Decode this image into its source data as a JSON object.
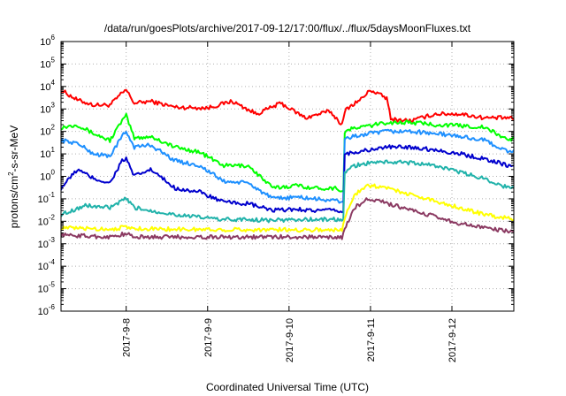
{
  "chart_data": {
    "type": "line",
    "title": "/data/run/goesPlots/archive/2017-09-12/17:00/flux/../flux/5daysMoonFluxes.txt",
    "xlabel": "Coordinated Universal Time (UTC)",
    "ylabel_main": "protons/cm",
    "ylabel_sup": "2",
    "ylabel_tail": "-s-sr-MeV",
    "y_scale": "log",
    "ylim": [
      1e-06,
      1000000.0
    ],
    "xlim": [
      7.2,
      12.76
    ],
    "grid": true,
    "legend": "none",
    "x_ticks": [
      {
        "value": 8,
        "label": "2017-9-8"
      },
      {
        "value": 9,
        "label": "2017-9-9"
      },
      {
        "value": 10,
        "label": "2017-9-10"
      },
      {
        "value": 11,
        "label": "2017-9-11"
      },
      {
        "value": 12,
        "label": "2017-9-12"
      }
    ],
    "y_ticks": [
      {
        "value": -6,
        "base": "10",
        "exp": "-6"
      },
      {
        "value": -5,
        "base": "10",
        "exp": "-5"
      },
      {
        "value": -4,
        "base": "10",
        "exp": "-4"
      },
      {
        "value": -3,
        "base": "10",
        "exp": "-3"
      },
      {
        "value": -2,
        "base": "10",
        "exp": "-2"
      },
      {
        "value": -1,
        "base": "10",
        "exp": "-1"
      },
      {
        "value": 0,
        "base": "10",
        "exp": "0"
      },
      {
        "value": 1,
        "base": "10",
        "exp": "1"
      },
      {
        "value": 2,
        "base": "10",
        "exp": "2"
      },
      {
        "value": 3,
        "base": "10",
        "exp": "3"
      },
      {
        "value": 4,
        "base": "10",
        "exp": "4"
      },
      {
        "value": 5,
        "base": "10",
        "exp": "5"
      },
      {
        "value": 6,
        "base": "10",
        "exp": "6"
      }
    ],
    "series": [
      {
        "color": "#ff0000",
        "x": [
          7.2,
          7.4,
          7.6,
          7.8,
          7.95,
          8.0,
          8.1,
          8.3,
          8.6,
          9.0,
          9.3,
          9.6,
          9.9,
          10.2,
          10.5,
          10.65,
          10.7,
          10.9,
          11.0,
          11.2,
          11.25,
          11.5,
          11.8,
          12.1,
          12.4,
          12.7,
          12.76
        ],
        "y": [
          7000,
          2500,
          1500,
          1500,
          5000,
          7000,
          1800,
          2200,
          1200,
          1100,
          2200,
          600,
          1800,
          400,
          800,
          200,
          1000,
          3000,
          7000,
          3000,
          350,
          300,
          600,
          600,
          400,
          400,
          350
        ]
      },
      {
        "color": "#00ff00",
        "x": [
          7.2,
          7.4,
          7.6,
          7.8,
          7.95,
          8.0,
          8.1,
          8.3,
          8.6,
          8.9,
          9.2,
          9.5,
          9.8,
          10.1,
          10.3,
          10.6,
          10.65,
          10.7,
          10.8,
          11.0,
          11.2,
          11.5,
          11.8,
          12.1,
          12.4,
          12.7,
          12.76
        ],
        "y": [
          150,
          200,
          80,
          40,
          300,
          500,
          50,
          60,
          20,
          12,
          3,
          3,
          0.3,
          0.4,
          0.3,
          0.3,
          0.2,
          100,
          140,
          180,
          250,
          250,
          200,
          180,
          150,
          40,
          50
        ]
      },
      {
        "color": "#1e90ff",
        "x": [
          7.2,
          7.4,
          7.6,
          7.8,
          7.95,
          8.0,
          8.1,
          8.3,
          8.6,
          8.9,
          9.2,
          9.5,
          9.8,
          10.1,
          10.3,
          10.6,
          10.65,
          10.7,
          10.8,
          11.0,
          11.2,
          11.5,
          11.8,
          12.1,
          12.4,
          12.7,
          12.76
        ],
        "y": [
          40,
          30,
          10,
          8,
          60,
          100,
          20,
          25,
          5,
          3,
          0.6,
          0.5,
          0.1,
          0.12,
          0.1,
          0.08,
          0.07,
          50,
          60,
          80,
          100,
          100,
          80,
          60,
          40,
          12,
          15
        ]
      },
      {
        "color": "#0000cd",
        "x": [
          7.2,
          7.4,
          7.6,
          7.8,
          7.95,
          8.0,
          8.1,
          8.3,
          8.6,
          8.9,
          9.2,
          9.5,
          9.8,
          10.1,
          10.3,
          10.6,
          10.65,
          10.7,
          10.8,
          11.0,
          11.2,
          11.5,
          11.8,
          12.1,
          12.4,
          12.7,
          12.76
        ],
        "y": [
          0.3,
          2,
          0.8,
          0.5,
          5,
          6,
          1,
          2,
          0.3,
          0.2,
          0.07,
          0.06,
          0.03,
          0.035,
          0.03,
          0.03,
          0.025,
          10,
          12,
          15,
          20,
          20,
          15,
          10,
          6,
          3,
          3
        ]
      },
      {
        "color": "#20b2aa",
        "x": [
          7.2,
          7.5,
          7.8,
          7.95,
          8.0,
          8.1,
          8.3,
          8.6,
          8.9,
          9.2,
          9.5,
          9.8,
          10.1,
          10.3,
          10.6,
          10.65,
          10.7,
          10.8,
          11.0,
          11.2,
          11.5,
          11.8,
          12.1,
          12.4,
          12.7,
          12.76
        ],
        "y": [
          0.02,
          0.05,
          0.04,
          0.08,
          0.1,
          0.04,
          0.03,
          0.02,
          0.015,
          0.012,
          0.012,
          0.011,
          0.012,
          0.012,
          0.012,
          0.011,
          1.5,
          3,
          4,
          4.5,
          4,
          3,
          1.5,
          0.8,
          0.3,
          0.3
        ]
      },
      {
        "color": "#ffff00",
        "x": [
          7.2,
          7.5,
          7.8,
          8.0,
          8.1,
          8.5,
          9.0,
          9.5,
          10.0,
          10.5,
          10.65,
          10.7,
          10.8,
          10.95,
          11.1,
          11.3,
          11.5,
          11.8,
          12.1,
          12.4,
          12.76
        ],
        "y": [
          0.005,
          0.0048,
          0.0045,
          0.0055,
          0.0048,
          0.0045,
          0.0043,
          0.0042,
          0.0042,
          0.0042,
          0.004,
          0.02,
          0.15,
          0.4,
          0.35,
          0.25,
          0.15,
          0.08,
          0.04,
          0.02,
          0.012
        ]
      },
      {
        "color": "#8b3a62",
        "x": [
          7.2,
          7.5,
          7.8,
          8.0,
          8.1,
          8.5,
          9.0,
          9.5,
          10.0,
          10.5,
          10.65,
          10.7,
          10.8,
          10.95,
          11.1,
          11.3,
          11.5,
          11.8,
          12.1,
          12.4,
          12.76
        ],
        "y": [
          0.0025,
          0.0022,
          0.002,
          0.0028,
          0.002,
          0.002,
          0.002,
          0.002,
          0.002,
          0.002,
          0.0018,
          0.006,
          0.04,
          0.09,
          0.08,
          0.05,
          0.03,
          0.016,
          0.008,
          0.005,
          0.0035
        ]
      }
    ]
  }
}
